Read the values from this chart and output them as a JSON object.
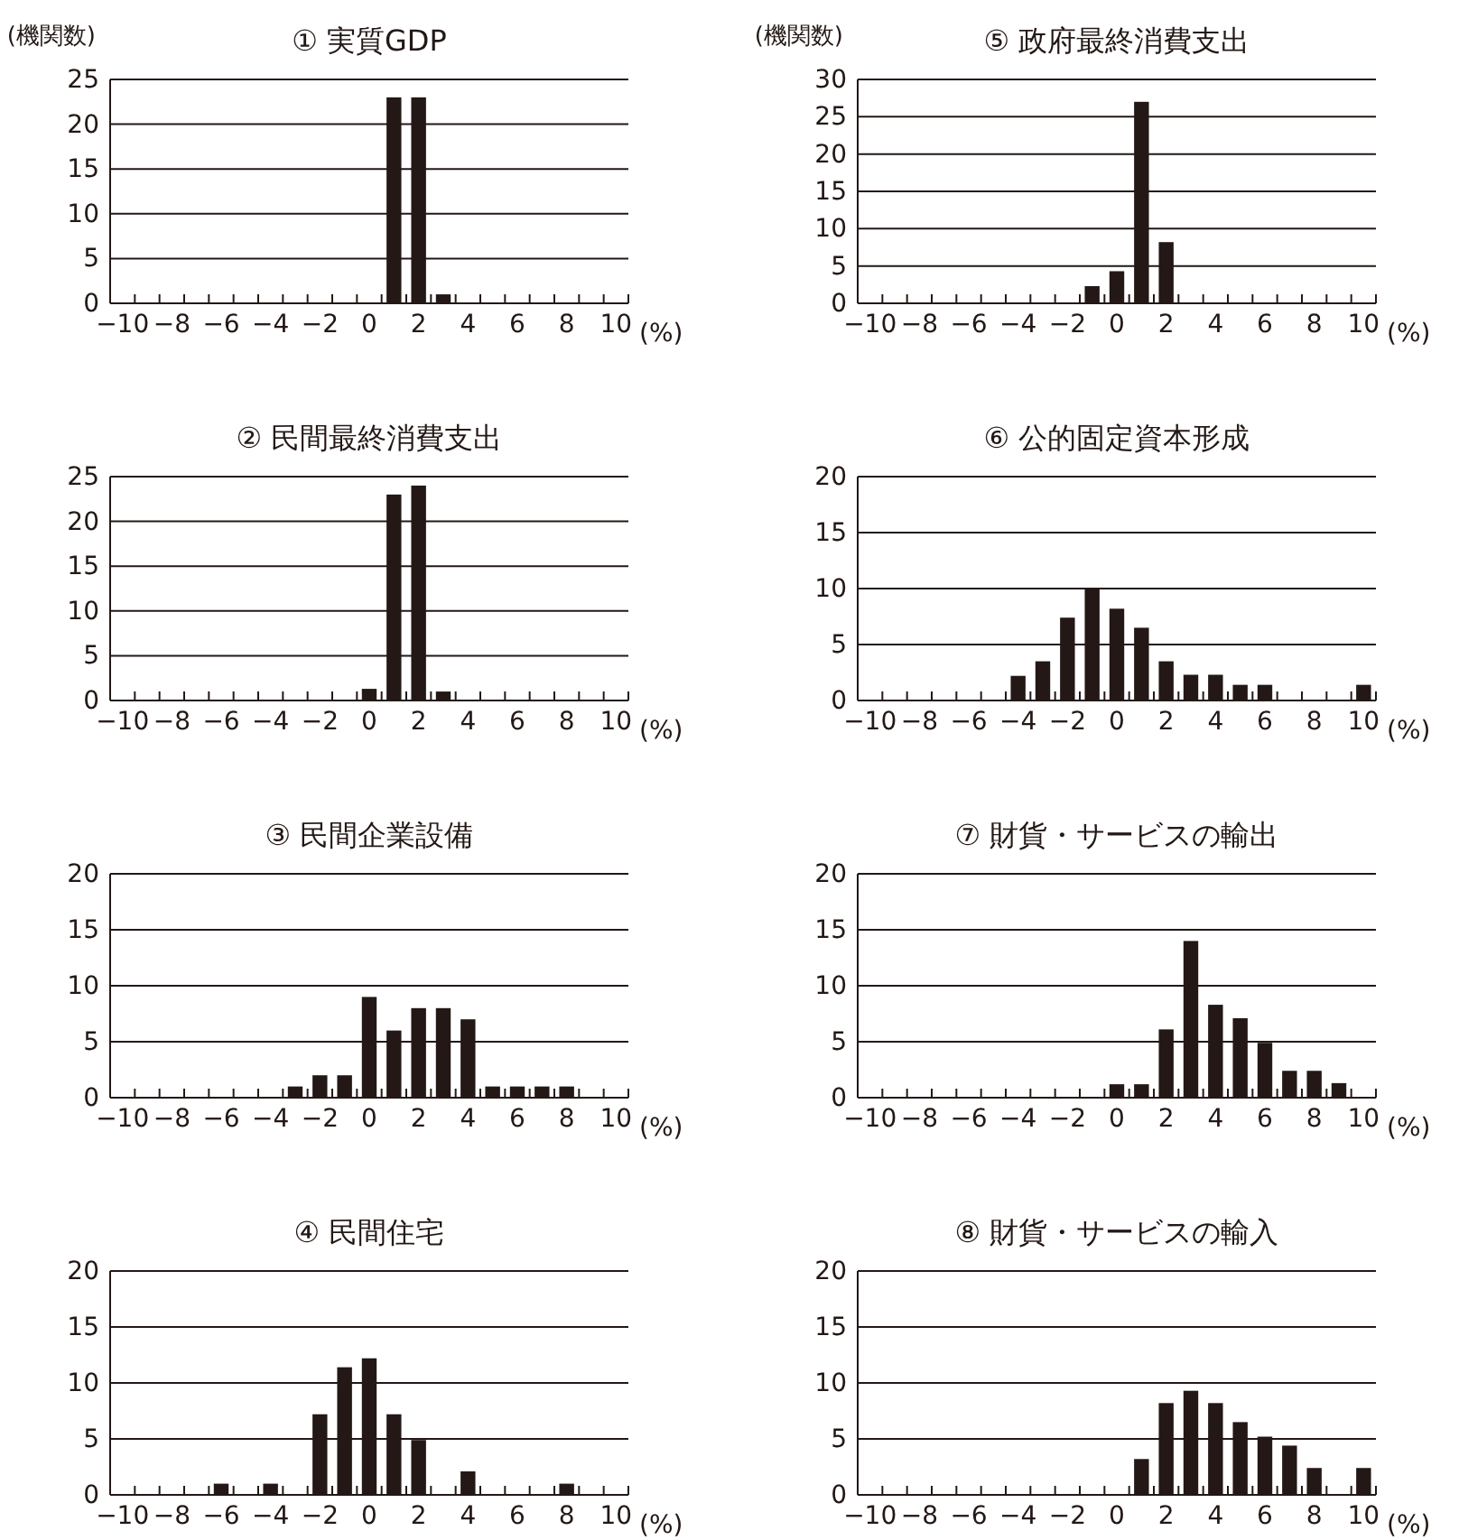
{
  "chart_data": [
    {
      "type": "bar",
      "title": "① 実質GDP",
      "ylabel": "(機関数)",
      "xlabel": "(%)",
      "categories": [
        "−10",
        null,
        "−8",
        null,
        "−6",
        null,
        "−4",
        null,
        "−2",
        null,
        "0",
        null,
        "2",
        null,
        "4",
        null,
        "6",
        null,
        "8",
        null,
        "10"
      ],
      "values": [
        0,
        0,
        0,
        0,
        0,
        0,
        0,
        0,
        0,
        0,
        0,
        23,
        23,
        1,
        0,
        0,
        0,
        0,
        0,
        0,
        0
      ],
      "color": "#231815",
      "ylim": [
        0,
        25
      ],
      "yticks": [
        0,
        5,
        10,
        15,
        20,
        25
      ],
      "grid": "y"
    },
    {
      "type": "bar",
      "title": "② 民間最終消費支出",
      "xlabel": "(%)",
      "categories": [
        "−10",
        null,
        "−8",
        null,
        "−6",
        null,
        "−4",
        null,
        "−2",
        null,
        "0",
        null,
        "2",
        null,
        "4",
        null,
        "6",
        null,
        "8",
        null,
        "10"
      ],
      "values": [
        0,
        0,
        0,
        0,
        0,
        0,
        0,
        0,
        0,
        0,
        1.3,
        23,
        24,
        1,
        0,
        0,
        0,
        0,
        0,
        0,
        0
      ],
      "color": "#231815",
      "ylim": [
        0,
        25
      ],
      "yticks": [
        0,
        5,
        10,
        15,
        20,
        25
      ],
      "grid": "y"
    },
    {
      "type": "bar",
      "title": "③ 民間企業設備",
      "xlabel": "(%)",
      "categories": [
        "−10",
        null,
        "−8",
        null,
        "−6",
        null,
        "−4",
        null,
        "−2",
        null,
        "0",
        null,
        "2",
        null,
        "4",
        null,
        "6",
        null,
        "8",
        null,
        "10"
      ],
      "values": [
        0,
        0,
        0,
        0,
        0,
        0,
        0,
        1,
        2,
        2,
        9,
        6,
        8,
        8,
        7,
        1,
        1,
        1,
        1,
        0,
        0
      ],
      "color": "#231815",
      "ylim": [
        0,
        20
      ],
      "yticks": [
        0,
        5,
        10,
        15,
        20
      ],
      "grid": "y"
    },
    {
      "type": "bar",
      "title": "④ 民間住宅",
      "xlabel": "(%)",
      "categories": [
        "−10",
        null,
        "−8",
        null,
        "−6",
        null,
        "−4",
        null,
        "−2",
        null,
        "0",
        null,
        "2",
        null,
        "4",
        null,
        "6",
        null,
        "8",
        null,
        "10"
      ],
      "values": [
        0,
        0,
        0,
        0,
        1,
        0,
        1,
        0,
        7.2,
        11.4,
        12.2,
        7.2,
        4.9,
        0,
        2.1,
        0,
        0,
        0,
        1,
        0,
        0
      ],
      "color": "#231815",
      "ylim": [
        0,
        20
      ],
      "yticks": [
        0,
        5,
        10,
        15,
        20
      ],
      "grid": "y"
    },
    {
      "type": "bar",
      "title": "⑤ 政府最終消費支出",
      "ylabel": "(機関数)",
      "xlabel": "(%)",
      "categories": [
        "−10",
        null,
        "−8",
        null,
        "−6",
        null,
        "−4",
        null,
        "−2",
        null,
        "0",
        null,
        "2",
        null,
        "4",
        null,
        "6",
        null,
        "8",
        null,
        "10"
      ],
      "values": [
        0,
        0,
        0,
        0,
        0,
        0,
        0,
        0,
        0,
        2.3,
        4.3,
        27,
        8.2,
        0,
        0,
        0,
        0,
        0,
        0,
        0,
        0
      ],
      "color": "#231815",
      "ylim": [
        0,
        30
      ],
      "yticks": [
        0,
        5,
        10,
        15,
        20,
        25,
        30
      ],
      "grid": "y"
    },
    {
      "type": "bar",
      "title": "⑥ 公的固定資本形成",
      "xlabel": "(%)",
      "categories": [
        "−10",
        null,
        "−8",
        null,
        "−6",
        null,
        "−4",
        null,
        "−2",
        null,
        "0",
        null,
        "2",
        null,
        "4",
        null,
        "6",
        null,
        "8",
        null,
        "10"
      ],
      "values": [
        0,
        0,
        0,
        0,
        0,
        0,
        2.2,
        3.5,
        7.4,
        10,
        8.2,
        6.5,
        3.5,
        2.3,
        2.3,
        1.4,
        1.4,
        0,
        0,
        0,
        1.4
      ],
      "color": "#231815",
      "ylim": [
        0,
        20
      ],
      "yticks": [
        0,
        5,
        10,
        15,
        20
      ],
      "grid": "y"
    },
    {
      "type": "bar",
      "title": "⑦ 財貨・サービスの輸出",
      "xlabel": "(%)",
      "categories": [
        "−10",
        null,
        "−8",
        null,
        "−6",
        null,
        "−4",
        null,
        "−2",
        null,
        "0",
        null,
        "2",
        null,
        "4",
        null,
        "6",
        null,
        "8",
        null,
        "10"
      ],
      "values": [
        0,
        0,
        0,
        0,
        0,
        0,
        0,
        0,
        0,
        0,
        1.2,
        1.2,
        6.1,
        14,
        8.3,
        7.1,
        4.9,
        2.4,
        2.4,
        1.3,
        0
      ],
      "color": "#231815",
      "ylim": [
        0,
        20
      ],
      "yticks": [
        0,
        5,
        10,
        15,
        20
      ],
      "grid": "y"
    },
    {
      "type": "bar",
      "title": "⑧ 財貨・サービスの輸入",
      "xlabel": "(%)",
      "categories": [
        "−10",
        null,
        "−8",
        null,
        "−6",
        null,
        "−4",
        null,
        "−2",
        null,
        "0",
        null,
        "2",
        null,
        "4",
        null,
        "6",
        null,
        "8",
        null,
        "10"
      ],
      "values": [
        0,
        0,
        0,
        0,
        0,
        0,
        0,
        0,
        0,
        0,
        0,
        3.2,
        8.2,
        9.3,
        8.2,
        6.5,
        5.2,
        4.4,
        2.4,
        0,
        2.4
      ],
      "color": "#231815",
      "ylim": [
        0,
        20
      ],
      "yticks": [
        0,
        5,
        10,
        15,
        20
      ],
      "grid": "y"
    }
  ]
}
